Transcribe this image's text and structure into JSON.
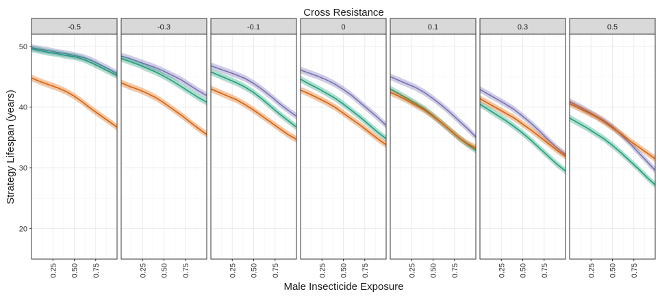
{
  "chart_data": {
    "type": "line",
    "title": "Cross Resistance",
    "xlabel": "Male Insecticide Exposure",
    "ylabel": "Strategy Lifespan (years)",
    "ylim": [
      15,
      52
    ],
    "xlim": [
      0,
      1
    ],
    "x_ticks": [
      "0.25",
      "0.50",
      "0.75"
    ],
    "y_ticks": [
      "20",
      "30",
      "40",
      "50"
    ],
    "grid": true,
    "legend": "none",
    "series_colors": [
      "#7570B3",
      "#1B9E77",
      "#D95F02"
    ],
    "x": [
      0,
      0.1,
      0.2,
      0.3,
      0.4,
      0.5,
      0.6,
      0.7,
      0.8,
      0.9,
      1.0
    ],
    "panels": [
      {
        "label": "-0.5",
        "series": [
          {
            "values": [
              49.8,
              49.5,
              49.3,
              49.0,
              48.8,
              48.5,
              48.2,
              47.7,
              47.0,
              46.3,
              45.5
            ]
          },
          {
            "values": [
              49.6,
              49.3,
              49.0,
              48.8,
              48.5,
              48.3,
              47.9,
              47.3,
              46.6,
              45.9,
              45.2
            ]
          },
          {
            "values": [
              44.8,
              44.2,
              43.7,
              43.2,
              42.6,
              41.8,
              40.8,
              39.7,
              38.7,
              37.7,
              36.7
            ]
          }
        ]
      },
      {
        "label": "-0.3",
        "series": [
          {
            "values": [
              48.4,
              48.0,
              47.5,
              47.0,
              46.5,
              45.9,
              45.2,
              44.5,
              43.6,
              42.7,
              41.9
            ]
          },
          {
            "values": [
              48.0,
              47.5,
              47.0,
              46.4,
              45.8,
              45.1,
              44.3,
              43.4,
              42.5,
              41.6,
              40.8
            ]
          },
          {
            "values": [
              44.0,
              43.4,
              42.9,
              42.3,
              41.6,
              40.7,
              39.7,
              38.7,
              37.6,
              36.5,
              35.5
            ]
          }
        ]
      },
      {
        "label": "-0.1",
        "series": [
          {
            "values": [
              46.8,
              46.3,
              45.8,
              45.3,
              44.7,
              43.9,
              42.9,
              41.8,
              40.6,
              39.5,
              38.5
            ]
          },
          {
            "values": [
              45.8,
              45.2,
              44.6,
              44.0,
              43.3,
              42.4,
              41.3,
              40.1,
              38.9,
              37.8,
              36.7
            ]
          },
          {
            "values": [
              43.0,
              42.4,
              41.8,
              41.2,
              40.4,
              39.5,
              38.5,
              37.5,
              36.5,
              35.5,
              34.7
            ]
          }
        ]
      },
      {
        "label": "0",
        "series": [
          {
            "values": [
              46.1,
              45.6,
              45.1,
              44.5,
              43.8,
              42.9,
              41.9,
              40.7,
              39.5,
              38.3,
              37.0
            ]
          },
          {
            "values": [
              44.6,
              43.8,
              43.1,
              42.3,
              41.5,
              40.5,
              39.4,
              38.3,
              37.1,
              35.9,
              34.8
            ]
          },
          {
            "values": [
              42.8,
              42.2,
              41.5,
              40.8,
              40.0,
              39.0,
              38.0,
              37.0,
              35.9,
              34.8,
              33.8
            ]
          }
        ]
      },
      {
        "label": "0.1",
        "series": [
          {
            "values": [
              45.0,
              44.4,
              43.8,
              43.2,
              42.4,
              41.4,
              40.3,
              39.1,
              37.8,
              36.5,
              35.1
            ]
          },
          {
            "values": [
              43.0,
              42.2,
              41.4,
              40.6,
              39.7,
              38.6,
              37.4,
              36.2,
              35.0,
              33.9,
              32.9
            ]
          },
          {
            "values": [
              42.4,
              41.8,
              41.1,
              40.3,
              39.5,
              38.5,
              37.4,
              36.2,
              35.0,
              34.0,
              33.3
            ]
          }
        ]
      },
      {
        "label": "0.3",
        "series": [
          {
            "values": [
              42.9,
              42.1,
              41.3,
              40.5,
              39.6,
              38.5,
              37.3,
              36.0,
              34.6,
              33.3,
              32.2
            ]
          },
          {
            "values": [
              40.5,
              39.6,
              38.7,
              37.8,
              36.8,
              35.7,
              34.5,
              33.2,
              31.9,
              30.6,
              29.5
            ]
          },
          {
            "values": [
              41.4,
              40.6,
              39.8,
              39.0,
              38.2,
              37.2,
              36.2,
              35.1,
              34.0,
              32.9,
              31.9
            ]
          }
        ]
      },
      {
        "label": "0.5",
        "series": [
          {
            "values": [
              40.9,
              40.2,
              39.4,
              38.6,
              37.8,
              36.8,
              35.5,
              34.1,
              32.6,
              31.1,
              29.6
            ]
          },
          {
            "values": [
              38.2,
              37.4,
              36.6,
              35.7,
              34.8,
              33.7,
              32.5,
              31.2,
              29.9,
              28.5,
              27.2
            ]
          },
          {
            "values": [
              40.6,
              39.9,
              39.2,
              38.5,
              37.6,
              36.6,
              35.6,
              34.5,
              33.5,
              32.5,
              31.5
            ]
          }
        ]
      }
    ]
  }
}
